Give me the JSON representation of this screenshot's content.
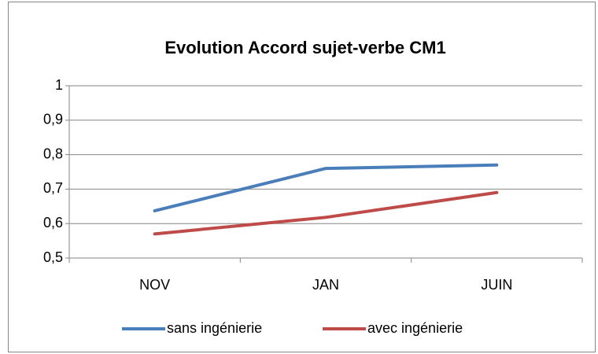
{
  "chart_data": {
    "type": "line",
    "title": "Evolution Accord sujet-verbe CM1",
    "categories": [
      "NOV",
      "JAN",
      "JUIN"
    ],
    "series": [
      {
        "name": "sans ingénierie",
        "color": "#4a7ebb",
        "values": [
          0.637,
          0.76,
          0.77
        ]
      },
      {
        "name": "avec ingénierie",
        "color": "#be4b48",
        "values": [
          0.57,
          0.618,
          0.69
        ]
      }
    ],
    "ylim": [
      0.5,
      1
    ],
    "yticks": [
      {
        "value": 0.5,
        "label": "0,5"
      },
      {
        "value": 0.6,
        "label": "0,6"
      },
      {
        "value": 0.7,
        "label": "0,7"
      },
      {
        "value": 0.8,
        "label": "0,8"
      },
      {
        "value": 0.9,
        "label": "0,9"
      },
      {
        "value": 1,
        "label": "1"
      }
    ],
    "grid": true,
    "legend": "bottom"
  }
}
